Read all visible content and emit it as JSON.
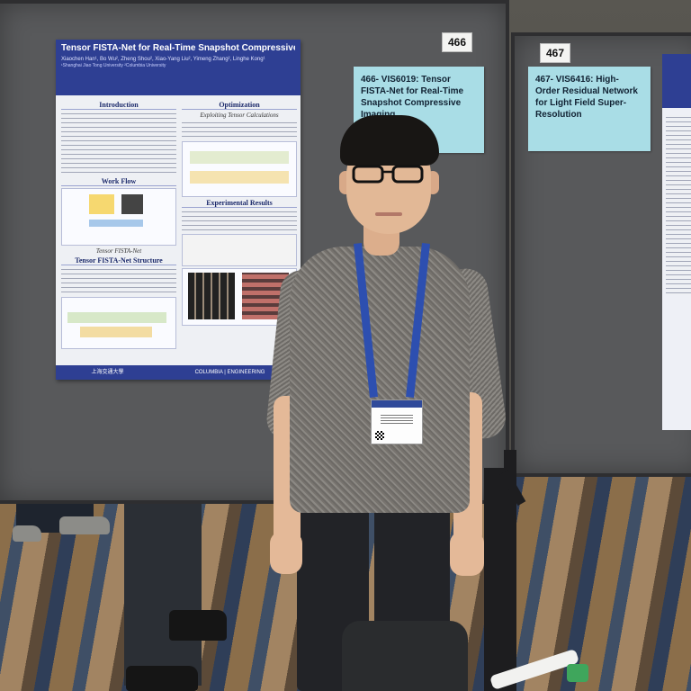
{
  "board_numbers": {
    "left": "466",
    "right": "467"
  },
  "sticky_notes": {
    "left": "466- VIS6019: Tensor FISTA-Net for Real-Time Snapshot Compressive Imaging",
    "right": "467- VIS6416: High-Order Residual Network for Light Field Super-Resolution"
  },
  "poster": {
    "title": "Tensor FISTA-Net for Real-Time Snapshot Compressive Imaging (SCI)",
    "authors": "Xiaochen Han¹, Bo Wu², Zheng Shou², Xiao-Yang Liu², Yimeng Zhang², Linghe Kong¹",
    "affiliations": "¹Shanghai Jiao Tong University  ²Columbia University",
    "sections": {
      "introduction": "Introduction",
      "work_flow": "Work Flow",
      "structure": "Tensor FISTA-Net Structure",
      "optimization": "Optimization",
      "optimization_sub": "Exploiting Tensor Calculations",
      "experimental": "Experimental Results"
    },
    "figure_caption": "Tensor FISTA-Net",
    "footer_left": "上海交通大學",
    "footer_right": "COLUMBIA | ENGINEERING"
  },
  "colors": {
    "poster_header": "#2e3f93",
    "sticky_note": "#a9dde6",
    "lanyard": "#2d4fb0"
  }
}
